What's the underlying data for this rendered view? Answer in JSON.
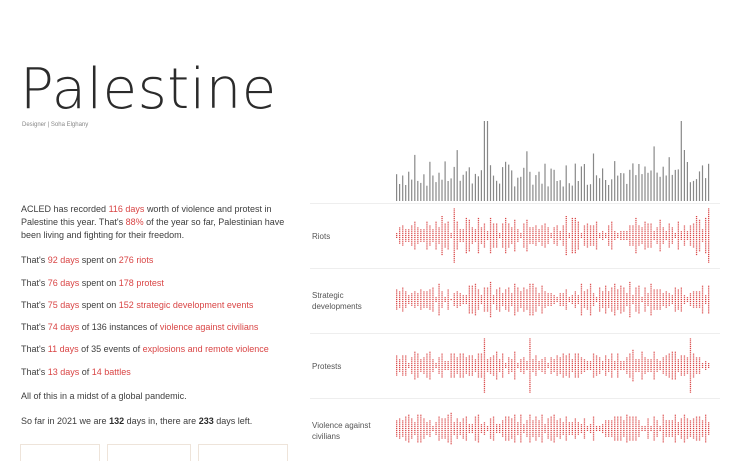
{
  "header": {
    "title": "Palestine",
    "designer": "Designer | Soha Elghany"
  },
  "intro": {
    "p1": "ACLED has recorded",
    "p1_days": "116 days",
    "p2": "worth of violence and protest in Palestine this year. That's",
    "p2_pct": "88%",
    "p3": "of the year so far, Palestinian have been living and fighting for their freedom."
  },
  "stats": [
    {
      "pre": "That's ",
      "days": "92 days",
      "mid": " spent on ",
      "events": "276 riots",
      "post": ""
    },
    {
      "pre": "That's ",
      "days": "76 days",
      "mid": " spent on ",
      "events": "178 protest",
      "post": ""
    },
    {
      "pre": "That's ",
      "days": "75 days",
      "mid": " spent on ",
      "events": "152 strategic development events",
      "post": ""
    },
    {
      "pre": "That's ",
      "days": "74 days",
      "mid": " of 136 instances of ",
      "events": "violence against civilians",
      "post": ""
    },
    {
      "pre": "That's ",
      "days": "11 days",
      "mid": " of 35 events of ",
      "events": "explosions and remote violence",
      "post": ""
    },
    {
      "pre": "That's ",
      "days": "13 days",
      "mid": " of ",
      "events": "14 battles",
      "post": ""
    }
  ],
  "pandemic": "All of this in a midst of a global pandemic.",
  "sofar": {
    "pre": "So far in 2021 we are",
    "days_in": "132",
    "mid": "days in, there are",
    "days_left": "233",
    "post": "days left."
  },
  "rows": [
    {
      "label": "Riots"
    },
    {
      "label": "Strategic developments"
    },
    {
      "label": "Protests"
    },
    {
      "label": "Violence against civilians"
    }
  ],
  "colors": {
    "accent": "#d94545",
    "total_bars": "#888888"
  }
}
